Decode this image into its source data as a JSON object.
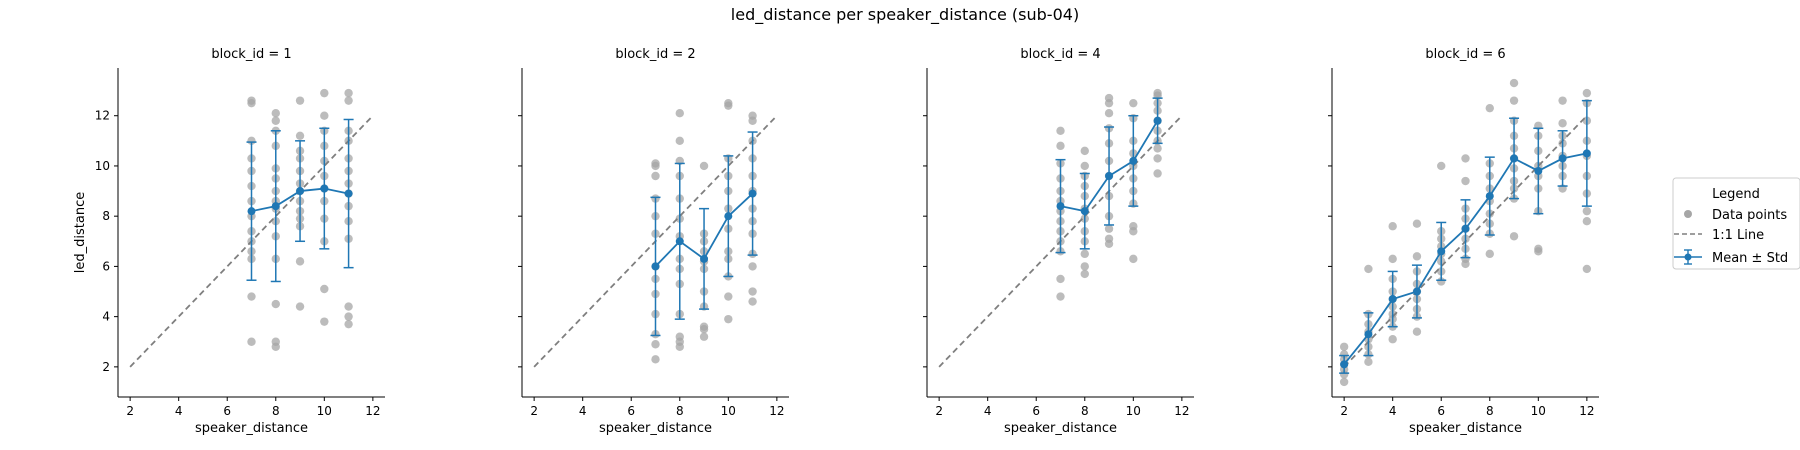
{
  "figure": {
    "title": "led_distance per speaker_distance (sub-04)"
  },
  "legend": {
    "title": "Legend",
    "placement": "right",
    "entries": {
      "points": "Data points",
      "line": "1:1 Line",
      "mean": "Mean ± Std"
    }
  },
  "colors": {
    "points": "#a6a6a6",
    "identity_line": "#7f7f7f",
    "mean": "#1f77b4"
  },
  "chart_data": [
    {
      "type": "scatter",
      "title": "block_id = 1",
      "xlabel": "speaker_distance",
      "ylabel": "led_distance",
      "xlim": [
        1.5,
        12.5
      ],
      "ylim": [
        0.8,
        13.9
      ],
      "xticks": [
        2,
        4,
        6,
        8,
        10,
        12
      ],
      "yticks": [
        2,
        4,
        6,
        8,
        10,
        12
      ],
      "identity_line": [
        2,
        12
      ],
      "points": [
        [
          7,
          12.6
        ],
        [
          7,
          12.5
        ],
        [
          7,
          11.0
        ],
        [
          7,
          10.3
        ],
        [
          7,
          9.8
        ],
        [
          7,
          9.2
        ],
        [
          7,
          8.6
        ],
        [
          7,
          8.0
        ],
        [
          7,
          7.4
        ],
        [
          7,
          7.0
        ],
        [
          7,
          6.6
        ],
        [
          7,
          6.3
        ],
        [
          7,
          4.8
        ],
        [
          7,
          3.0
        ],
        [
          8,
          12.1
        ],
        [
          8,
          11.8
        ],
        [
          8,
          11.4
        ],
        [
          8,
          10.8
        ],
        [
          8,
          9.9
        ],
        [
          8,
          9.5
        ],
        [
          8,
          9.0
        ],
        [
          8,
          8.6
        ],
        [
          8,
          8.3
        ],
        [
          8,
          7.8
        ],
        [
          8,
          7.2
        ],
        [
          8,
          6.3
        ],
        [
          8,
          4.5
        ],
        [
          8,
          3.0
        ],
        [
          8,
          2.8
        ],
        [
          9,
          12.6
        ],
        [
          9,
          11.2
        ],
        [
          9,
          10.6
        ],
        [
          9,
          10.3
        ],
        [
          9,
          9.8
        ],
        [
          9,
          9.3
        ],
        [
          9,
          9.0
        ],
        [
          9,
          8.6
        ],
        [
          9,
          8.2
        ],
        [
          9,
          7.9
        ],
        [
          9,
          7.6
        ],
        [
          9,
          6.2
        ],
        [
          9,
          4.4
        ],
        [
          10,
          12.9
        ],
        [
          10,
          12.0
        ],
        [
          10,
          11.4
        ],
        [
          10,
          10.8
        ],
        [
          10,
          10.2
        ],
        [
          10,
          9.6
        ],
        [
          10,
          9.1
        ],
        [
          10,
          8.6
        ],
        [
          10,
          7.9
        ],
        [
          10,
          7.0
        ],
        [
          10,
          5.1
        ],
        [
          10,
          3.8
        ],
        [
          11,
          12.9
        ],
        [
          11,
          12.6
        ],
        [
          11,
          11.4
        ],
        [
          11,
          11.0
        ],
        [
          11,
          10.3
        ],
        [
          11,
          9.8
        ],
        [
          11,
          9.3
        ],
        [
          11,
          8.9
        ],
        [
          11,
          8.4
        ],
        [
          11,
          7.8
        ],
        [
          11,
          7.1
        ],
        [
          11,
          4.4
        ],
        [
          11,
          4.0
        ],
        [
          11,
          3.7
        ]
      ],
      "mean": [
        {
          "x": 7,
          "y": 8.2,
          "sd": 2.75
        },
        {
          "x": 8,
          "y": 8.4,
          "sd": 3.0
        },
        {
          "x": 9,
          "y": 9.0,
          "sd": 2.0
        },
        {
          "x": 10,
          "y": 9.1,
          "sd": 2.4
        },
        {
          "x": 11,
          "y": 8.9,
          "sd": 2.95
        }
      ]
    },
    {
      "type": "scatter",
      "title": "block_id = 2",
      "xlabel": "speaker_distance",
      "ylabel": "",
      "xlim": [
        1.5,
        12.5
      ],
      "ylim": [
        0.8,
        13.9
      ],
      "xticks": [
        2,
        4,
        6,
        8,
        10,
        12
      ],
      "yticks": [
        2,
        4,
        6,
        8,
        10,
        12
      ],
      "identity_line": [
        2,
        12
      ],
      "points": [
        [
          7,
          10.1
        ],
        [
          7,
          10.0
        ],
        [
          7,
          9.6
        ],
        [
          7,
          8.7
        ],
        [
          7,
          8.0
        ],
        [
          7,
          7.3
        ],
        [
          7,
          6.0
        ],
        [
          7,
          5.5
        ],
        [
          7,
          4.9
        ],
        [
          7,
          4.1
        ],
        [
          7,
          3.3
        ],
        [
          7,
          2.9
        ],
        [
          7,
          2.3
        ],
        [
          8,
          12.1
        ],
        [
          8,
          11.0
        ],
        [
          8,
          10.2
        ],
        [
          8,
          9.6
        ],
        [
          8,
          8.7
        ],
        [
          8,
          7.9
        ],
        [
          8,
          7.2
        ],
        [
          8,
          6.3
        ],
        [
          8,
          5.9
        ],
        [
          8,
          5.3
        ],
        [
          8,
          4.1
        ],
        [
          8,
          3.2
        ],
        [
          8,
          3.0
        ],
        [
          8,
          2.8
        ],
        [
          9,
          10.0
        ],
        [
          9,
          7.3
        ],
        [
          9,
          7.0
        ],
        [
          9,
          6.6
        ],
        [
          9,
          6.2
        ],
        [
          9,
          5.9
        ],
        [
          9,
          5.0
        ],
        [
          9,
          4.4
        ],
        [
          9,
          3.6
        ],
        [
          9,
          3.5
        ],
        [
          9,
          3.2
        ],
        [
          10,
          12.5
        ],
        [
          10,
          12.4
        ],
        [
          10,
          10.3
        ],
        [
          10,
          9.6
        ],
        [
          10,
          9.0
        ],
        [
          10,
          8.3
        ],
        [
          10,
          7.5
        ],
        [
          10,
          6.6
        ],
        [
          10,
          6.3
        ],
        [
          10,
          5.6
        ],
        [
          10,
          4.8
        ],
        [
          10,
          3.9
        ],
        [
          11,
          12.0
        ],
        [
          11,
          11.8
        ],
        [
          11,
          11.0
        ],
        [
          11,
          10.3
        ],
        [
          11,
          9.6
        ],
        [
          11,
          9.0
        ],
        [
          11,
          8.3
        ],
        [
          11,
          7.8
        ],
        [
          11,
          7.3
        ],
        [
          11,
          6.5
        ],
        [
          11,
          6.0
        ],
        [
          11,
          5.0
        ],
        [
          11,
          4.6
        ]
      ],
      "mean": [
        {
          "x": 7,
          "y": 6.0,
          "sd": 2.75
        },
        {
          "x": 8,
          "y": 7.0,
          "sd": 3.1
        },
        {
          "x": 9,
          "y": 6.3,
          "sd": 2.0
        },
        {
          "x": 10,
          "y": 8.0,
          "sd": 2.4
        },
        {
          "x": 11,
          "y": 8.9,
          "sd": 2.45
        }
      ]
    },
    {
      "type": "scatter",
      "title": "block_id = 4",
      "xlabel": "speaker_distance",
      "ylabel": "",
      "xlim": [
        1.5,
        12.5
      ],
      "ylim": [
        0.8,
        13.9
      ],
      "xticks": [
        2,
        4,
        6,
        8,
        10,
        12
      ],
      "yticks": [
        2,
        4,
        6,
        8,
        10,
        12
      ],
      "identity_line": [
        2,
        12
      ],
      "points": [
        [
          7,
          11.4
        ],
        [
          7,
          10.8
        ],
        [
          7,
          10.1
        ],
        [
          7,
          9.5
        ],
        [
          7,
          9.0
        ],
        [
          7,
          8.6
        ],
        [
          7,
          8.2
        ],
        [
          7,
          7.8
        ],
        [
          7,
          7.4
        ],
        [
          7,
          7.0
        ],
        [
          7,
          6.6
        ],
        [
          7,
          5.5
        ],
        [
          7,
          4.8
        ],
        [
          8,
          10.6
        ],
        [
          8,
          10.0
        ],
        [
          8,
          9.6
        ],
        [
          8,
          9.2
        ],
        [
          8,
          8.8
        ],
        [
          8,
          8.3
        ],
        [
          8,
          7.9
        ],
        [
          8,
          7.4
        ],
        [
          8,
          7.0
        ],
        [
          8,
          6.5
        ],
        [
          8,
          6.0
        ],
        [
          8,
          5.7
        ],
        [
          9,
          12.7
        ],
        [
          9,
          12.5
        ],
        [
          9,
          12.1
        ],
        [
          9,
          11.5
        ],
        [
          9,
          10.9
        ],
        [
          9,
          10.2
        ],
        [
          9,
          9.6
        ],
        [
          9,
          8.8
        ],
        [
          9,
          8.0
        ],
        [
          9,
          7.5
        ],
        [
          9,
          7.1
        ],
        [
          9,
          6.9
        ],
        [
          10,
          12.5
        ],
        [
          10,
          11.9
        ],
        [
          10,
          11.0
        ],
        [
          10,
          10.5
        ],
        [
          10,
          10.0
        ],
        [
          10,
          9.5
        ],
        [
          10,
          9.0
        ],
        [
          10,
          8.5
        ],
        [
          10,
          7.6
        ],
        [
          10,
          7.4
        ],
        [
          10,
          6.3
        ],
        [
          11,
          12.9
        ],
        [
          11,
          12.8
        ],
        [
          11,
          12.5
        ],
        [
          11,
          12.2
        ],
        [
          11,
          11.8
        ],
        [
          11,
          11.4
        ],
        [
          11,
          11.0
        ],
        [
          11,
          10.7
        ],
        [
          11,
          10.3
        ],
        [
          11,
          9.7
        ]
      ],
      "mean": [
        {
          "x": 7,
          "y": 8.4,
          "sd": 1.85
        },
        {
          "x": 8,
          "y": 8.2,
          "sd": 1.5
        },
        {
          "x": 9,
          "y": 9.6,
          "sd": 1.95
        },
        {
          "x": 10,
          "y": 10.2,
          "sd": 1.8
        },
        {
          "x": 11,
          "y": 11.8,
          "sd": 0.9
        }
      ]
    },
    {
      "type": "scatter",
      "title": "block_id = 6",
      "xlabel": "speaker_distance",
      "ylabel": "",
      "xlim": [
        1.5,
        12.5
      ],
      "ylim": [
        0.8,
        13.9
      ],
      "xticks": [
        2,
        4,
        6,
        8,
        10,
        12
      ],
      "yticks": [
        2,
        4,
        6,
        8,
        10,
        12
      ],
      "identity_line": [
        2,
        12
      ],
      "points": [
        [
          2,
          2.8
        ],
        [
          2,
          2.5
        ],
        [
          2,
          2.3
        ],
        [
          2,
          2.1
        ],
        [
          2,
          1.9
        ],
        [
          2,
          1.7
        ],
        [
          2,
          1.4
        ],
        [
          3,
          5.9
        ],
        [
          3,
          4.1
        ],
        [
          3,
          3.7
        ],
        [
          3,
          3.4
        ],
        [
          3,
          3.1
        ],
        [
          3,
          2.8
        ],
        [
          3,
          2.5
        ],
        [
          3,
          2.2
        ],
        [
          4,
          7.6
        ],
        [
          4,
          6.3
        ],
        [
          4,
          5.5
        ],
        [
          4,
          5.0
        ],
        [
          4,
          4.7
        ],
        [
          4,
          4.4
        ],
        [
          4,
          4.1
        ],
        [
          4,
          3.9
        ],
        [
          4,
          3.6
        ],
        [
          4,
          3.1
        ],
        [
          5,
          7.7
        ],
        [
          5,
          6.4
        ],
        [
          5,
          5.8
        ],
        [
          5,
          5.3
        ],
        [
          5,
          5.0
        ],
        [
          5,
          4.7
        ],
        [
          5,
          4.3
        ],
        [
          5,
          4.0
        ],
        [
          5,
          3.4
        ],
        [
          6,
          10.0
        ],
        [
          6,
          7.4
        ],
        [
          6,
          7.1
        ],
        [
          6,
          6.8
        ],
        [
          6,
          6.5
        ],
        [
          6,
          6.2
        ],
        [
          6,
          5.8
        ],
        [
          6,
          5.4
        ],
        [
          7,
          10.3
        ],
        [
          7,
          9.4
        ],
        [
          7,
          8.3
        ],
        [
          7,
          7.9
        ],
        [
          7,
          7.5
        ],
        [
          7,
          7.1
        ],
        [
          7,
          6.7
        ],
        [
          7,
          6.3
        ],
        [
          7,
          6.1
        ],
        [
          8,
          12.3
        ],
        [
          8,
          10.1
        ],
        [
          8,
          9.6
        ],
        [
          8,
          9.1
        ],
        [
          8,
          8.6
        ],
        [
          8,
          8.1
        ],
        [
          8,
          7.7
        ],
        [
          8,
          7.3
        ],
        [
          8,
          6.5
        ],
        [
          9,
          13.3
        ],
        [
          9,
          12.6
        ],
        [
          9,
          11.8
        ],
        [
          9,
          11.2
        ],
        [
          9,
          10.7
        ],
        [
          9,
          10.3
        ],
        [
          9,
          9.9
        ],
        [
          9,
          9.4
        ],
        [
          9,
          9.1
        ],
        [
          9,
          8.7
        ],
        [
          9,
          7.2
        ],
        [
          10,
          11.6
        ],
        [
          10,
          11.2
        ],
        [
          10,
          10.6
        ],
        [
          10,
          10.0
        ],
        [
          10,
          9.6
        ],
        [
          10,
          9.1
        ],
        [
          10,
          8.2
        ],
        [
          10,
          6.7
        ],
        [
          10,
          6.6
        ],
        [
          11,
          12.6
        ],
        [
          11,
          11.7
        ],
        [
          11,
          11.2
        ],
        [
          11,
          10.9
        ],
        [
          11,
          10.4
        ],
        [
          11,
          10.0
        ],
        [
          11,
          9.6
        ],
        [
          11,
          9.1
        ],
        [
          12,
          12.9
        ],
        [
          12,
          12.5
        ],
        [
          12,
          11.8
        ],
        [
          12,
          11.0
        ],
        [
          12,
          10.4
        ],
        [
          12,
          9.6
        ],
        [
          12,
          8.9
        ],
        [
          12,
          8.2
        ],
        [
          12,
          7.8
        ],
        [
          12,
          5.9
        ]
      ],
      "mean": [
        {
          "x": 2,
          "y": 2.1,
          "sd": 0.35
        },
        {
          "x": 3,
          "y": 3.3,
          "sd": 0.85
        },
        {
          "x": 4,
          "y": 4.7,
          "sd": 1.1
        },
        {
          "x": 5,
          "y": 5.0,
          "sd": 1.05
        },
        {
          "x": 6,
          "y": 6.6,
          "sd": 1.15
        },
        {
          "x": 7,
          "y": 7.5,
          "sd": 1.15
        },
        {
          "x": 8,
          "y": 8.8,
          "sd": 1.55
        },
        {
          "x": 9,
          "y": 10.3,
          "sd": 1.6
        },
        {
          "x": 10,
          "y": 9.8,
          "sd": 1.7
        },
        {
          "x": 11,
          "y": 10.3,
          "sd": 1.1
        },
        {
          "x": 12,
          "y": 10.5,
          "sd": 2.1
        }
      ]
    }
  ]
}
